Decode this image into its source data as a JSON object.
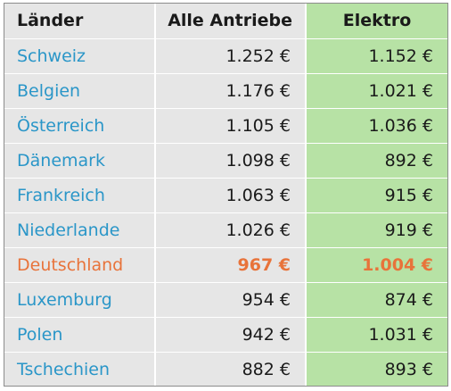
{
  "chart_data": {
    "type": "table",
    "columns": [
      "Länder",
      "Alle Antriebe",
      "Elektro"
    ],
    "rows": [
      {
        "country": "Schweiz",
        "all": "1.252 €",
        "elektro": "1.152 €"
      },
      {
        "country": "Belgien",
        "all": "1.176 €",
        "elektro": "1.021 €"
      },
      {
        "country": "Österreich",
        "all": "1.105 €",
        "elektro": "1.036 €"
      },
      {
        "country": "Dänemark",
        "all": "1.098 €",
        "elektro": "892 €"
      },
      {
        "country": "Frankreich",
        "all": "1.063 €",
        "elektro": "915 €"
      },
      {
        "country": "Niederlande",
        "all": "1.026 €",
        "elektro": "919 €"
      },
      {
        "country": "Deutschland",
        "all": "967 €",
        "elektro": "1.004 €",
        "highlight": true
      },
      {
        "country": "Luxemburg",
        "all": "954 €",
        "elektro": "874 €"
      },
      {
        "country": "Polen",
        "all": "942 €",
        "elektro": "1.031 €"
      },
      {
        "country": "Tschechien",
        "all": "882 €",
        "elektro": "893 €"
      }
    ],
    "values_all": [
      1252,
      1176,
      1105,
      1098,
      1063,
      1026,
      967,
      954,
      942,
      882
    ],
    "values_elektro": [
      1152,
      1021,
      1036,
      892,
      915,
      919,
      1004,
      874,
      1031,
      893
    ],
    "unit": "€"
  },
  "colors": {
    "country_text": "#2a96c8",
    "highlight_text": "#e8733a",
    "elektro_column_bg": "#b7e2a5",
    "table_bg": "#e6e6e6"
  }
}
